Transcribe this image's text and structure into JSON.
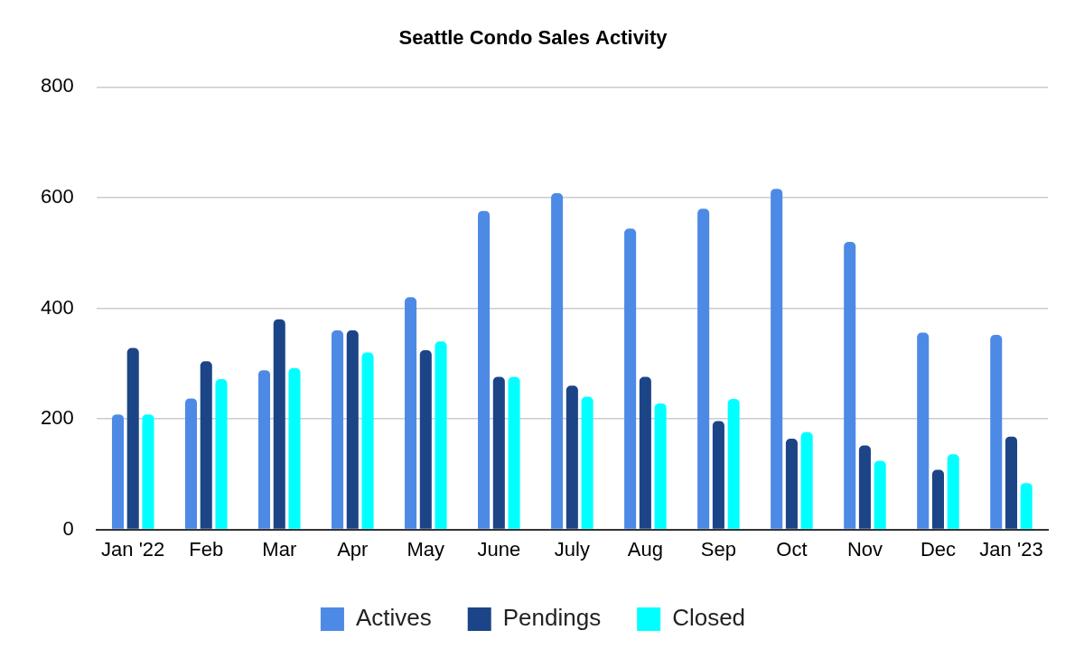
{
  "chart_data": {
    "type": "bar",
    "title": "Seattle Condo Sales Activity",
    "categories": [
      "Jan '22",
      "Feb",
      "Mar",
      "Apr",
      "May",
      "June",
      "July",
      "Aug",
      "Sep",
      "Oct",
      "Nov",
      "Dec",
      "Jan '23"
    ],
    "series": [
      {
        "name": "Actives",
        "color": "#4d8ae6",
        "values": [
          208,
          237,
          288,
          360,
          420,
          576,
          608,
          544,
          580,
          616,
          520,
          356,
          352
        ]
      },
      {
        "name": "Pendings",
        "color": "#1c4587",
        "values": [
          328,
          304,
          380,
          360,
          324,
          276,
          260,
          276,
          196,
          164,
          152,
          108,
          168
        ]
      },
      {
        "name": "Closed",
        "color": "#00ffff",
        "values": [
          208,
          272,
          292,
          320,
          340,
          276,
          240,
          228,
          236,
          176,
          124,
          136,
          84
        ]
      }
    ],
    "ylim": [
      0,
      800
    ],
    "yticks": [
      0,
      200,
      400,
      600,
      800
    ],
    "grid": true,
    "legend": "bottom"
  }
}
